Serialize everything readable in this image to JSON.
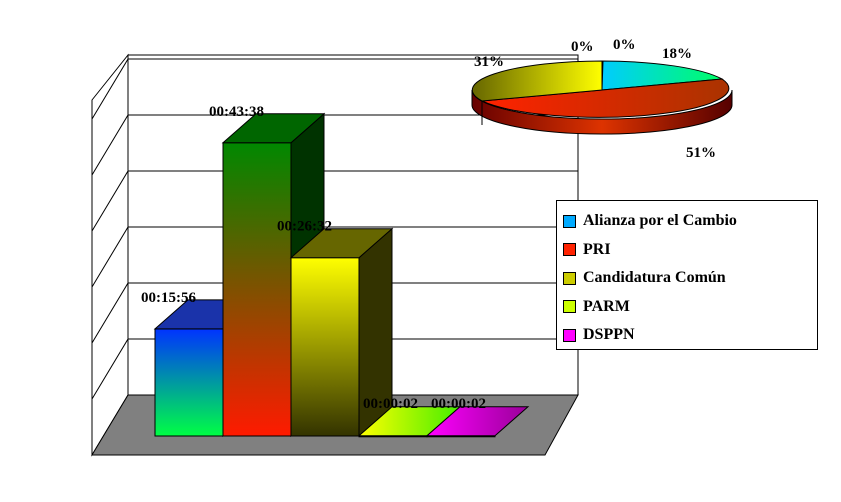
{
  "chart_data": [
    {
      "type": "bar",
      "categories": [
        "Alianza por el Cambio",
        "PRI",
        "Candidatura Común",
        "PARM",
        "DSPPN"
      ],
      "values": [
        956,
        2618,
        1592,
        2,
        2
      ],
      "value_unit": "seconds",
      "data_labels": [
        "00:15:56",
        "00:43:38",
        "00:26:32",
        "00:00:02",
        "00:00:02"
      ],
      "ylim": [
        0,
        3000
      ],
      "grid": true,
      "colors": {
        "Alianza por el Cambio": [
          "#0033ff",
          "#00ff44"
        ],
        "PRI": [
          "#008800",
          "#ff1a00"
        ],
        "Candidatura Común": [
          "#ffff00",
          "#333300"
        ],
        "PARM": [
          "#ffff00",
          "#44ee00"
        ],
        "DSPPN": [
          "#cc00cc",
          "#990099"
        ]
      }
    },
    {
      "type": "pie",
      "labels": [
        "Alianza por el Cambio",
        "PRI",
        "Candidatura Común",
        "PARM",
        "DSPPN"
      ],
      "values": [
        18,
        51,
        31,
        0,
        0
      ],
      "data_labels": [
        "18%",
        "51%",
        "31%",
        "0%",
        "0%"
      ]
    }
  ],
  "legend": {
    "placement": "right",
    "items": [
      {
        "label": "Alianza por el Cambio",
        "color": "#00aaff"
      },
      {
        "label": "PRI",
        "color": "#ff2200"
      },
      {
        "label": "Candidatura Común",
        "color": "#cccc00"
      },
      {
        "label": "PARM",
        "color": "#ccff00"
      },
      {
        "label": "DSPPN",
        "color": "#ff00ff"
      }
    ]
  }
}
